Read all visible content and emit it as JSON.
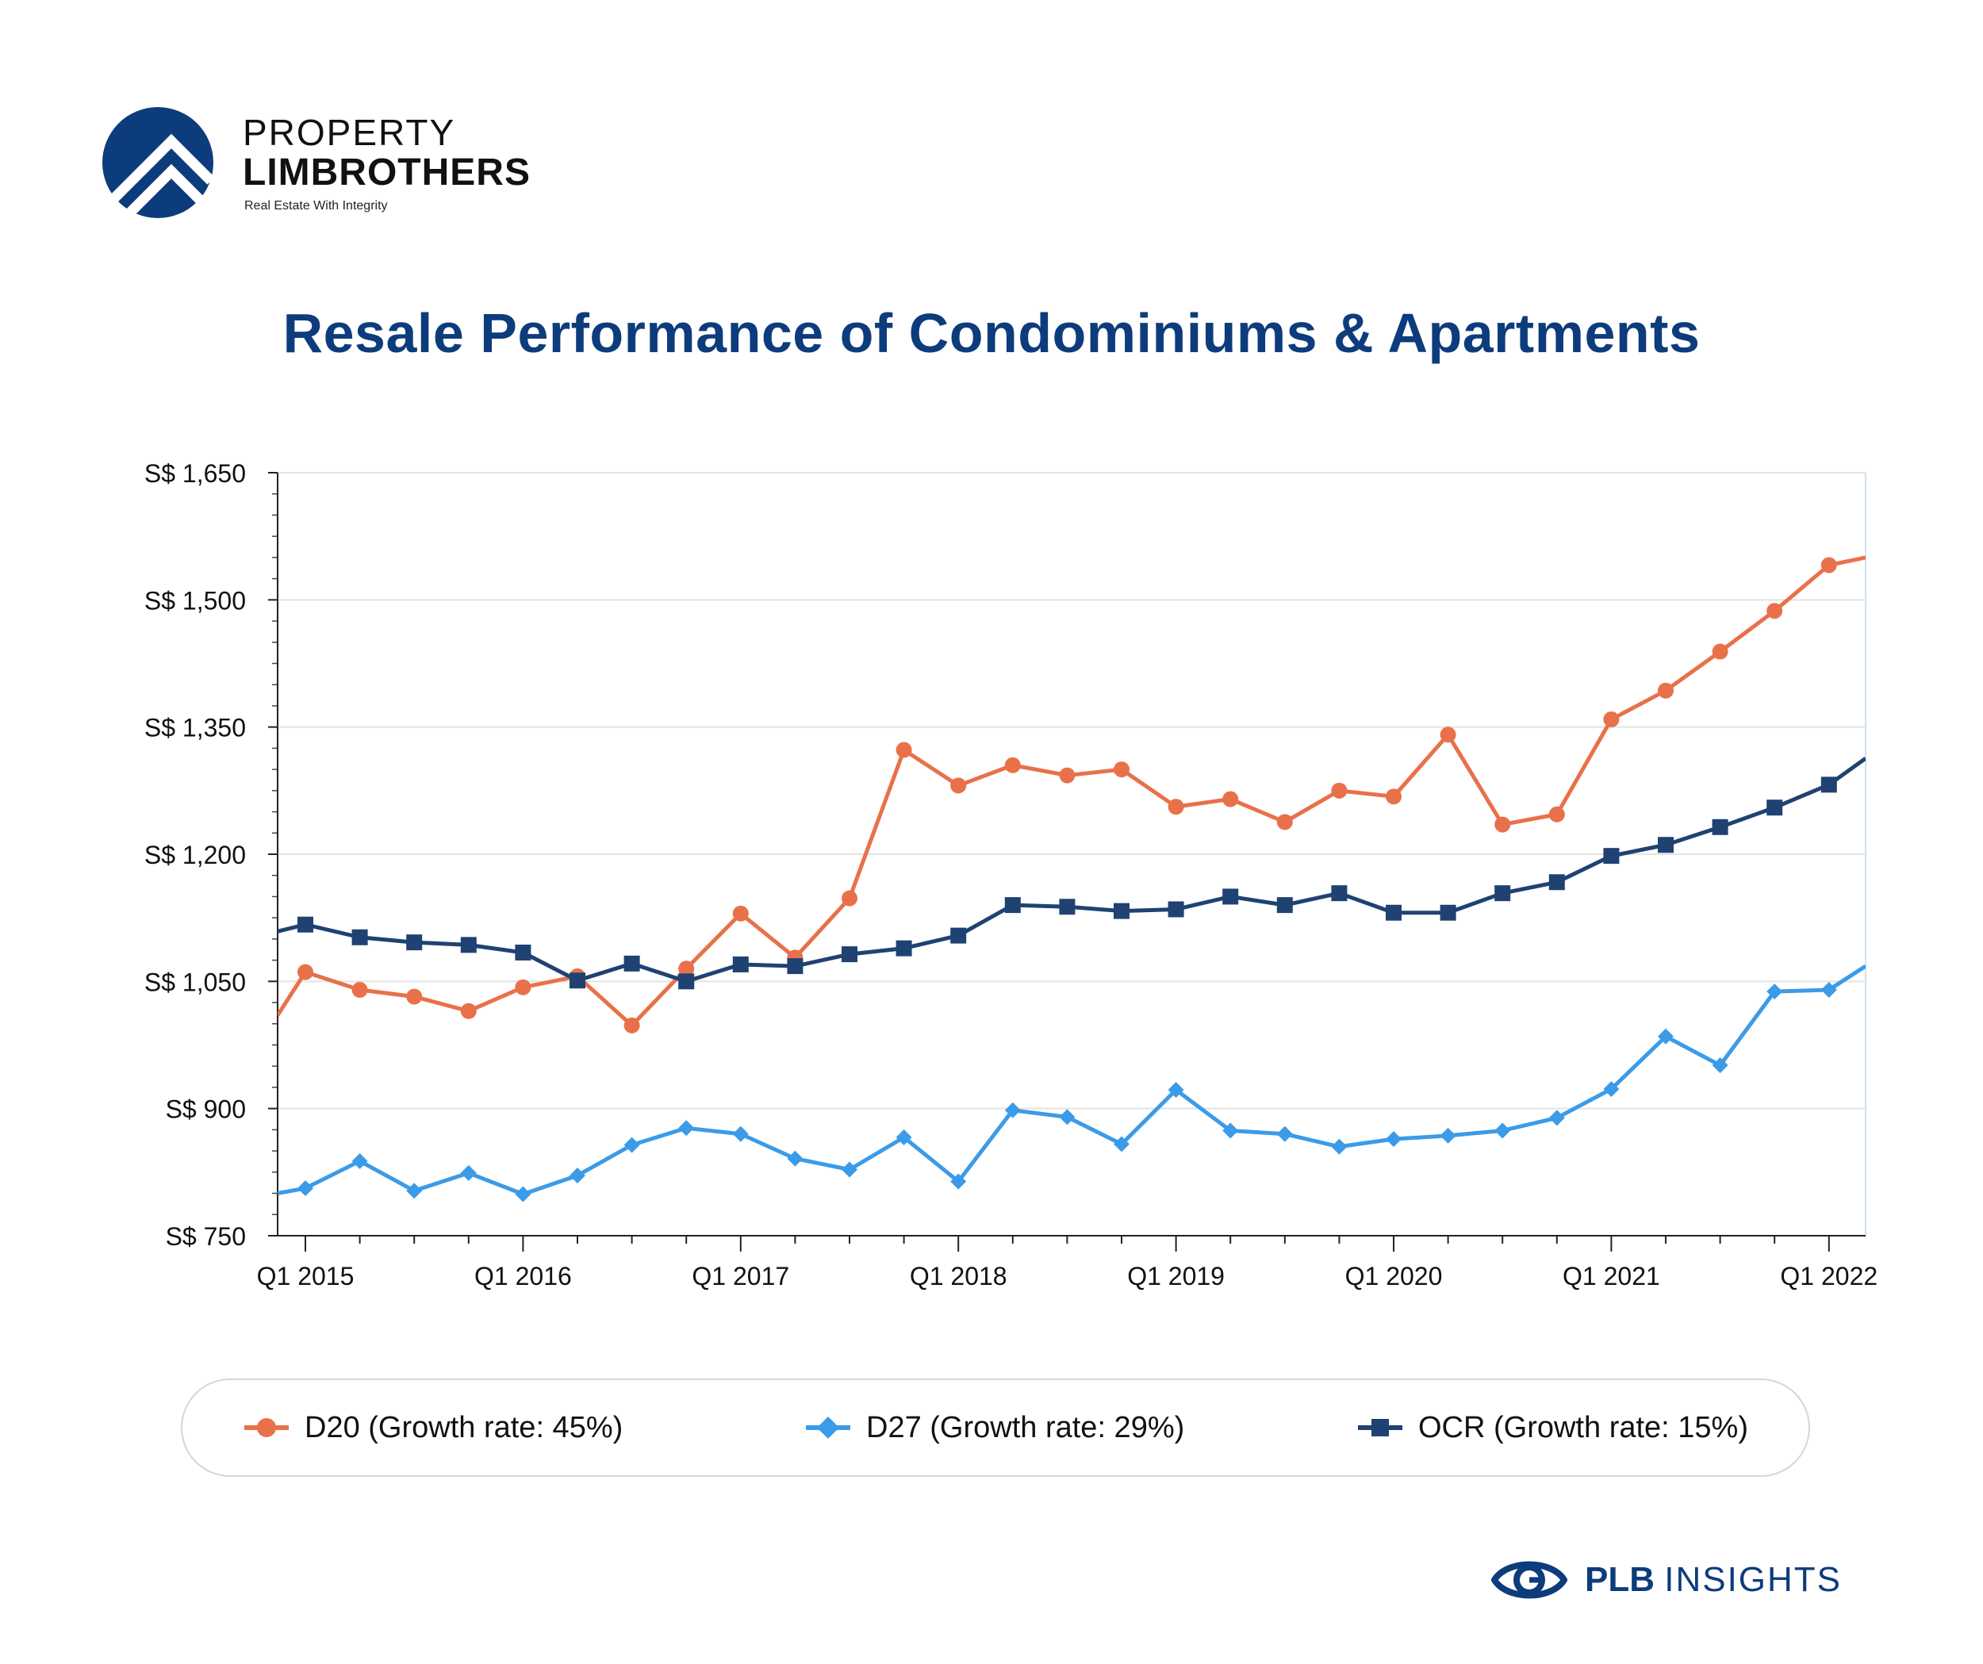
{
  "brand": {
    "name_line1": "PROPERTY",
    "name_line2": "LIMBROTHERS",
    "tagline": "Real Estate With Integrity",
    "logo_icon": "roof-chevron-logo",
    "color": "#0d3c7c"
  },
  "title": "Resale Performance of Condominiums & Apartments",
  "footer": {
    "icon": "eye-icon",
    "text_bold": "PLB",
    "text_rest": "INSIGHTS"
  },
  "colors": {
    "d20": "#e8714a",
    "d27": "#3b9be8",
    "ocr": "#1f4272",
    "title": "#0d3c7c"
  },
  "chart_data": {
    "type": "line",
    "title": "Resale Performance of Condominiums & Apartments",
    "xlabel": "",
    "ylabel": "",
    "ylim": [
      750,
      1650
    ],
    "y_ticks": [
      750,
      900,
      1050,
      1200,
      1350,
      1500,
      1650
    ],
    "y_tick_labels": [
      "S$ 750",
      "S$ 900",
      "S$ 1,050",
      "S$ 1,200",
      "S$ 1,350",
      "S$ 1,500",
      "S$ 1,650"
    ],
    "x_tick_labels": [
      "Q1 2015",
      "Q1 2016",
      "Q1 2017",
      "Q1 2018",
      "Q1 2019",
      "Q1 2020",
      "Q1 2021",
      "Q1 2022"
    ],
    "x_tick_index": [
      0,
      4,
      8,
      12,
      16,
      20,
      24,
      28
    ],
    "x": [
      "Q1 2015",
      "Q2 2015",
      "Q3 2015",
      "Q4 2015",
      "Q1 2016",
      "Q2 2016",
      "Q3 2016",
      "Q4 2016",
      "Q1 2017",
      "Q2 2017",
      "Q3 2017",
      "Q4 2017",
      "Q1 2018",
      "Q2 2018",
      "Q3 2018",
      "Q4 2018",
      "Q1 2019",
      "Q2 2019",
      "Q3 2019",
      "Q4 2019",
      "Q1 2020",
      "Q2 2020",
      "Q3 2020",
      "Q4 2020",
      "Q1 2021",
      "Q2 2021",
      "Q3 2021",
      "Q4 2021",
      "Q1 2022"
    ],
    "grid": true,
    "legend_position": "bottom",
    "series": [
      {
        "name": "D20 (Growth rate: 45%)",
        "marker": "circle",
        "start": 1010,
        "end": 1550,
        "values": [
          1061,
          1040,
          1032,
          1015,
          1043,
          1056,
          998,
          1065,
          1130,
          1078,
          1148,
          1323,
          1281,
          1305,
          1293,
          1300,
          1256,
          1265,
          1238,
          1275,
          1268,
          1341,
          1235,
          1247,
          1359,
          1393,
          1439,
          1487,
          1541
        ]
      },
      {
        "name": "D27 (Growth rate: 29%)",
        "marker": "diamond",
        "start": 800,
        "end": 1068,
        "values": [
          806,
          838,
          803,
          824,
          799,
          821,
          857,
          877,
          870,
          841,
          828,
          866,
          814,
          898,
          890,
          858,
          922,
          874,
          870,
          855,
          864,
          868,
          874,
          889,
          923,
          985,
          951,
          1038,
          1040
        ]
      },
      {
        "name": "OCR (Growth rate: 15%)",
        "marker": "square",
        "start": 1109,
        "end": 1313,
        "values": [
          1117,
          1102,
          1096,
          1093,
          1084,
          1051,
          1071,
          1050,
          1070,
          1068,
          1082,
          1089,
          1104,
          1140,
          1138,
          1133,
          1135,
          1150,
          1140,
          1154,
          1131,
          1131,
          1154,
          1167,
          1198,
          1211,
          1232,
          1255,
          1282
        ]
      }
    ]
  }
}
